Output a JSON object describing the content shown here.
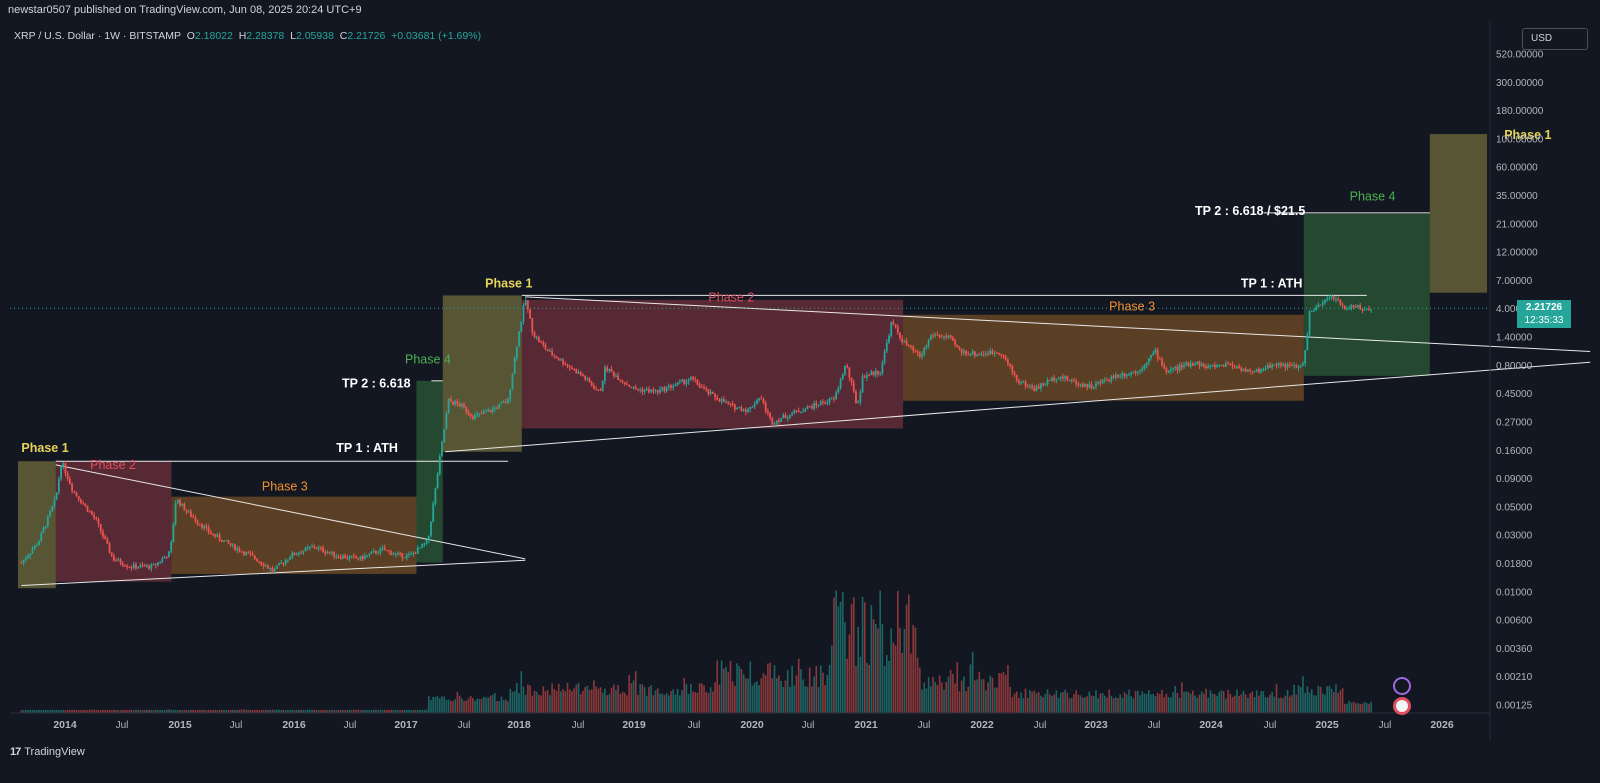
{
  "publisher": "newstar0507 published on TradingView.com, Jun 08, 2025 20:24 UTC+9",
  "brand": "TradingView",
  "brand_logo": "tradingview-logo-icon",
  "legend": {
    "symbol": "XRP / U.S. Dollar · 1W · BITSTAMP",
    "o_label": "O",
    "o": "2.18022",
    "h_label": "H",
    "h": "2.28378",
    "l_label": "L",
    "l": "2.05938",
    "c_label": "C",
    "c": "2.21726",
    "change": "+0.03681 (+1.69%)"
  },
  "currency": "USD",
  "price_tag": {
    "price": "2.21726",
    "countdown": "12:35:33"
  },
  "colors": {
    "up": "#26a69a",
    "down": "#ef5350",
    "background": "#131722",
    "phase1": "#e6d35a",
    "phase2": "#e04f5f",
    "phase3": "#f0922b",
    "phase4": "#4caf50"
  },
  "chart_data": {
    "type": "candlestick",
    "scale": "log",
    "x_axis_labels": [
      "2014",
      "Jul",
      "2015",
      "Jul",
      "2016",
      "Jul",
      "2017",
      "Jul",
      "2018",
      "Jul",
      "2019",
      "Jul",
      "2020",
      "Jul",
      "2021",
      "Jul",
      "2022",
      "Jul",
      "2023",
      "Jul",
      "2024",
      "Jul",
      "2025",
      "Jul",
      "2026"
    ],
    "y_axis_labels": [
      "520.00000",
      "300.00000",
      "180.00000",
      "100.00000",
      "60.00000",
      "35.00000",
      "21.00000",
      "12.00000",
      "7.00000",
      "4.00000",
      "1.40000",
      "0.80000",
      "0.45000",
      "0.27000",
      "0.16000",
      "0.09000",
      "0.05000",
      "0.03000",
      "0.01800",
      "0.01000",
      "0.00600",
      "0.00360",
      "0.00210",
      "0.00125"
    ],
    "price_path": [
      {
        "t": 2013.65,
        "p": 0.0055
      },
      {
        "t": 2013.8,
        "p": 0.009
      },
      {
        "t": 2013.95,
        "p": 0.025
      },
      {
        "t": 2014.0,
        "p": 0.06
      },
      {
        "t": 2014.1,
        "p": 0.03
      },
      {
        "t": 2014.3,
        "p": 0.015
      },
      {
        "t": 2014.45,
        "p": 0.006
      },
      {
        "t": 2014.6,
        "p": 0.005
      },
      {
        "t": 2014.8,
        "p": 0.005
      },
      {
        "t": 2014.95,
        "p": 0.007
      },
      {
        "t": 2015.0,
        "p": 0.025
      },
      {
        "t": 2015.1,
        "p": 0.018
      },
      {
        "t": 2015.3,
        "p": 0.011
      },
      {
        "t": 2015.5,
        "p": 0.008
      },
      {
        "t": 2015.7,
        "p": 0.006
      },
      {
        "t": 2015.85,
        "p": 0.0045
      },
      {
        "t": 2016.0,
        "p": 0.0065
      },
      {
        "t": 2016.2,
        "p": 0.008
      },
      {
        "t": 2016.4,
        "p": 0.0065
      },
      {
        "t": 2016.6,
        "p": 0.006
      },
      {
        "t": 2016.8,
        "p": 0.0075
      },
      {
        "t": 2016.95,
        "p": 0.0065
      },
      {
        "t": 2017.05,
        "p": 0.0065
      },
      {
        "t": 2017.2,
        "p": 0.009
      },
      {
        "t": 2017.3,
        "p": 0.06
      },
      {
        "t": 2017.38,
        "p": 0.25
      },
      {
        "t": 2017.5,
        "p": 0.22
      },
      {
        "t": 2017.6,
        "p": 0.17
      },
      {
        "t": 2017.75,
        "p": 0.2
      },
      {
        "t": 2017.9,
        "p": 0.25
      },
      {
        "t": 2017.98,
        "p": 1.0
      },
      {
        "t": 2018.05,
        "p": 2.8
      },
      {
        "t": 2018.12,
        "p": 1.2
      },
      {
        "t": 2018.25,
        "p": 0.8
      },
      {
        "t": 2018.4,
        "p": 0.6
      },
      {
        "t": 2018.55,
        "p": 0.45
      },
      {
        "t": 2018.7,
        "p": 0.3
      },
      {
        "t": 2018.75,
        "p": 0.55
      },
      {
        "t": 2018.9,
        "p": 0.4
      },
      {
        "t": 2019.0,
        "p": 0.33
      },
      {
        "t": 2019.2,
        "p": 0.31
      },
      {
        "t": 2019.4,
        "p": 0.38
      },
      {
        "t": 2019.5,
        "p": 0.42
      },
      {
        "t": 2019.65,
        "p": 0.3
      },
      {
        "t": 2019.85,
        "p": 0.22
      },
      {
        "t": 2020.0,
        "p": 0.2
      },
      {
        "t": 2020.1,
        "p": 0.28
      },
      {
        "t": 2020.2,
        "p": 0.15
      },
      {
        "t": 2020.4,
        "p": 0.19
      },
      {
        "t": 2020.6,
        "p": 0.23
      },
      {
        "t": 2020.75,
        "p": 0.26
      },
      {
        "t": 2020.85,
        "p": 0.6
      },
      {
        "t": 2020.95,
        "p": 0.22
      },
      {
        "t": 2021.0,
        "p": 0.45
      },
      {
        "t": 2021.15,
        "p": 0.5
      },
      {
        "t": 2021.25,
        "p": 1.6
      },
      {
        "t": 2021.35,
        "p": 1.0
      },
      {
        "t": 2021.5,
        "p": 0.7
      },
      {
        "t": 2021.6,
        "p": 1.2
      },
      {
        "t": 2021.75,
        "p": 1.1
      },
      {
        "t": 2021.85,
        "p": 0.8
      },
      {
        "t": 2022.0,
        "p": 0.75
      },
      {
        "t": 2022.2,
        "p": 0.8
      },
      {
        "t": 2022.35,
        "p": 0.4
      },
      {
        "t": 2022.5,
        "p": 0.33
      },
      {
        "t": 2022.7,
        "p": 0.45
      },
      {
        "t": 2022.9,
        "p": 0.37
      },
      {
        "t": 2023.0,
        "p": 0.35
      },
      {
        "t": 2023.2,
        "p": 0.45
      },
      {
        "t": 2023.4,
        "p": 0.5
      },
      {
        "t": 2023.55,
        "p": 0.8
      },
      {
        "t": 2023.65,
        "p": 0.5
      },
      {
        "t": 2023.9,
        "p": 0.62
      },
      {
        "t": 2024.0,
        "p": 0.55
      },
      {
        "t": 2024.2,
        "p": 0.6
      },
      {
        "t": 2024.4,
        "p": 0.48
      },
      {
        "t": 2024.6,
        "p": 0.6
      },
      {
        "t": 2024.8,
        "p": 0.55
      },
      {
        "t": 2024.85,
        "p": 0.6
      },
      {
        "t": 2024.9,
        "p": 2.0
      },
      {
        "t": 2025.0,
        "p": 2.4
      },
      {
        "t": 2025.1,
        "p": 3.0
      },
      {
        "t": 2025.2,
        "p": 2.2
      },
      {
        "t": 2025.3,
        "p": 2.4
      },
      {
        "t": 2025.35,
        "p": 2.1
      },
      {
        "t": 2025.44,
        "p": 2.22
      }
    ],
    "annotations": [
      {
        "text": "Phase 1",
        "color": "#e6d35a",
        "t": 2013.65,
        "p": 0.075
      },
      {
        "text": "Phase 2",
        "color": "#e04f5f",
        "t": 2014.25,
        "p": 0.05
      },
      {
        "text": "Phase 3",
        "color": "#f0922b",
        "t": 2015.75,
        "p": 0.03
      },
      {
        "text": "TP 1 : ATH",
        "color": "#ffffff",
        "t": 2016.4,
        "p": 0.075
      },
      {
        "text": "TP 2 : 6.618",
        "color": "#ffffff",
        "t": 2016.45,
        "p": 0.34
      },
      {
        "text": "Phase 4",
        "color": "#4caf50",
        "t": 2017.0,
        "p": 0.6
      },
      {
        "text": "Phase 1",
        "color": "#e6d35a",
        "t": 2017.7,
        "p": 3.6
      },
      {
        "text": "Phase 2",
        "color": "#e04f5f",
        "t": 2019.65,
        "p": 2.6
      },
      {
        "text": "Phase 3",
        "color": "#f0922b",
        "t": 2023.15,
        "p": 2.1
      },
      {
        "text": "TP 1 : ATH",
        "color": "#ffffff",
        "t": 2024.3,
        "p": 3.6
      },
      {
        "text": "TP 2 : 6.618 / $21.5",
        "color": "#ffffff",
        "t": 2023.9,
        "p": 20.0
      },
      {
        "text": "Phase 4",
        "color": "#4caf50",
        "t": 2025.25,
        "p": 28.0
      },
      {
        "text": "Phase 1",
        "color": "#e6d35a",
        "t": 2026.6,
        "p": 120.0
      }
    ],
    "zones": [
      {
        "phase": "Phase 1",
        "color": "#e6d35a",
        "t0": 2013.62,
        "t1": 2013.95,
        "p_low": 0.003,
        "p_high": 0.06
      },
      {
        "phase": "Phase 2",
        "color": "#e04f5f",
        "t0": 2013.95,
        "t1": 2014.96,
        "p_low": 0.0035,
        "p_high": 0.06
      },
      {
        "phase": "Phase 3",
        "color": "#f0922b",
        "t0": 2014.96,
        "t1": 2017.1,
        "p_low": 0.0042,
        "p_high": 0.026
      },
      {
        "phase": "Phase 4",
        "color": "#4caf50",
        "t0": 2017.1,
        "t1": 2017.33,
        "p_low": 0.0055,
        "p_high": 0.4
      },
      {
        "phase": "Phase 1",
        "color": "#e6d35a",
        "t0": 2017.33,
        "t1": 2018.02,
        "p_low": 0.075,
        "p_high": 3.0
      },
      {
        "phase": "Phase 2",
        "color": "#e04f5f",
        "t0": 2018.02,
        "t1": 2021.35,
        "p_low": 0.13,
        "p_high": 2.7
      },
      {
        "phase": "Phase 3",
        "color": "#f0922b",
        "t0": 2021.35,
        "t1": 2024.85,
        "p_low": 0.25,
        "p_high": 1.9
      },
      {
        "phase": "Phase 4",
        "color": "#4caf50",
        "t0": 2024.85,
        "t1": 2025.95,
        "p_low": 0.45,
        "p_high": 20.5
      },
      {
        "phase": "Phase 1",
        "color": "#e6d35a",
        "t0": 2025.95,
        "t1": 2026.45,
        "p_low": 3.2,
        "p_high": 135.0
      }
    ],
    "lines": [
      {
        "name": "tp1-2017",
        "t0": 2013.95,
        "p0": 0.06,
        "t1": 2017.9,
        "p1": 0.06
      },
      {
        "name": "tp2-2017",
        "t0": 2017.23,
        "p0": 0.4,
        "t1": 2017.33,
        "p1": 0.4
      },
      {
        "name": "tp1-2025",
        "t0": 2018.02,
        "p0": 3.0,
        "t1": 2025.4,
        "p1": 3.0
      },
      {
        "name": "tp2-2025",
        "t0": 2024.5,
        "p0": 21.0,
        "t1": 2025.95,
        "p1": 21.0
      },
      {
        "name": "upper-wedge-1",
        "t0": 2013.95,
        "p0": 0.055,
        "t1": 2018.05,
        "p1": 0.006
      },
      {
        "name": "lower-wedge-1",
        "t0": 2013.65,
        "p0": 0.0032,
        "t1": 2018.05,
        "p1": 0.0058
      },
      {
        "name": "upper-wedge-2",
        "t0": 2018.05,
        "p0": 2.9,
        "t1": 2027.35,
        "p1": 0.8
      },
      {
        "name": "lower-wedge-2",
        "t0": 2017.35,
        "p0": 0.075,
        "t1": 2027.35,
        "p1": 0.62
      }
    ]
  }
}
